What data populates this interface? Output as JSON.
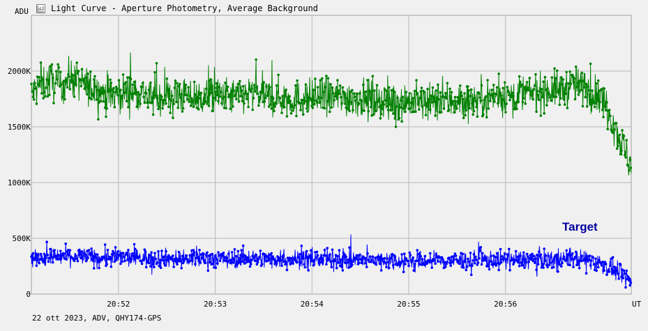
{
  "window": {
    "title": "Light Curve - Aperture Photometry, Average Background",
    "icon": "chart-icon"
  },
  "footer": {
    "text": "22 ott 2023, ADV, QHY174-GPS"
  },
  "chart_data": {
    "type": "scatter",
    "ylabel": "ADU",
    "xlabel": "UT",
    "ylim": [
      0,
      2500000
    ],
    "xlim": [
      "20:51:06",
      "20:57:18"
    ],
    "yticks": [
      {
        "value": 0,
        "label": "0"
      },
      {
        "value": 500000,
        "label": "500K"
      },
      {
        "value": 1000000,
        "label": "1000K"
      },
      {
        "value": 1500000,
        "label": "1500K"
      },
      {
        "value": 2000000,
        "label": "2000K"
      }
    ],
    "xticks": [
      {
        "value": "20:52:00",
        "label": "20:52"
      },
      {
        "value": "20:53:00",
        "label": "20:53"
      },
      {
        "value": "20:54:00",
        "label": "20:54"
      },
      {
        "value": "20:55:00",
        "label": "20:55"
      },
      {
        "value": "20:56:00",
        "label": "20:56"
      }
    ],
    "grid": true,
    "series": [
      {
        "name": "",
        "color": "#008000",
        "marker": "circle",
        "points": [
          [
            "20:51:06",
            1800000
          ],
          [
            "20:51:12",
            1880000
          ],
          [
            "20:51:18",
            1920000
          ],
          [
            "20:51:24",
            1850000
          ],
          [
            "20:51:30",
            1950000
          ],
          [
            "20:51:36",
            1900000
          ],
          [
            "20:51:42",
            1850000
          ],
          [
            "20:51:48",
            1830000
          ],
          [
            "20:51:54",
            1780000
          ],
          [
            "20:52:00",
            1800000
          ],
          [
            "20:52:12",
            1820000
          ],
          [
            "20:52:24",
            1760000
          ],
          [
            "20:52:36",
            1790000
          ],
          [
            "20:52:48",
            1760000
          ],
          [
            "20:53:00",
            1780000
          ],
          [
            "20:53:12",
            1770000
          ],
          [
            "20:53:24",
            1800000
          ],
          [
            "20:53:36",
            1760000
          ],
          [
            "20:53:48",
            1750000
          ],
          [
            "20:54:00",
            1760000
          ],
          [
            "20:54:12",
            1770000
          ],
          [
            "20:54:24",
            1760000
          ],
          [
            "20:54:36",
            1750000
          ],
          [
            "20:54:48",
            1740000
          ],
          [
            "20:55:00",
            1730000
          ],
          [
            "20:55:12",
            1720000
          ],
          [
            "20:55:24",
            1730000
          ],
          [
            "20:55:36",
            1740000
          ],
          [
            "20:55:48",
            1760000
          ],
          [
            "20:56:00",
            1780000
          ],
          [
            "20:56:12",
            1800000
          ],
          [
            "20:56:24",
            1820000
          ],
          [
            "20:56:36",
            1840000
          ],
          [
            "20:56:42",
            1880000
          ],
          [
            "20:56:48",
            1860000
          ],
          [
            "20:56:54",
            1800000
          ],
          [
            "20:57:00",
            1750000
          ],
          [
            "20:57:04",
            1650000
          ],
          [
            "20:57:08",
            1500000
          ],
          [
            "20:57:12",
            1350000
          ],
          [
            "20:57:15",
            1250000
          ],
          [
            "20:57:18",
            1150000
          ]
        ]
      },
      {
        "name": "Target",
        "color": "#0000ff",
        "marker": "circle",
        "points": [
          [
            "20:51:06",
            320000
          ],
          [
            "20:51:18",
            330000
          ],
          [
            "20:51:30",
            340000
          ],
          [
            "20:51:42",
            330000
          ],
          [
            "20:51:54",
            325000
          ],
          [
            "20:52:06",
            330000
          ],
          [
            "20:52:18",
            325000
          ],
          [
            "20:52:30",
            320000
          ],
          [
            "20:52:42",
            315000
          ],
          [
            "20:52:54",
            320000
          ],
          [
            "20:53:06",
            315000
          ],
          [
            "20:53:18",
            320000
          ],
          [
            "20:53:30",
            315000
          ],
          [
            "20:53:42",
            310000
          ],
          [
            "20:53:54",
            315000
          ],
          [
            "20:54:06",
            310000
          ],
          [
            "20:54:18",
            310000
          ],
          [
            "20:54:30",
            305000
          ],
          [
            "20:54:42",
            305000
          ],
          [
            "20:54:54",
            300000
          ],
          [
            "20:55:06",
            300000
          ],
          [
            "20:55:18",
            300000
          ],
          [
            "20:55:30",
            300000
          ],
          [
            "20:55:42",
            305000
          ],
          [
            "20:55:54",
            305000
          ],
          [
            "20:56:06",
            310000
          ],
          [
            "20:56:18",
            310000
          ],
          [
            "20:56:30",
            315000
          ],
          [
            "20:56:42",
            320000
          ],
          [
            "20:56:54",
            300000
          ],
          [
            "20:57:00",
            270000
          ],
          [
            "20:57:06",
            220000
          ],
          [
            "20:57:12",
            170000
          ],
          [
            "20:57:18",
            120000
          ]
        ]
      }
    ],
    "legend": [
      {
        "label": "Target",
        "color": "#00008b",
        "placement": "right, above blue series"
      }
    ],
    "scatter_noise_amplitude": {
      "green": 180000,
      "blue": 90000
    }
  }
}
